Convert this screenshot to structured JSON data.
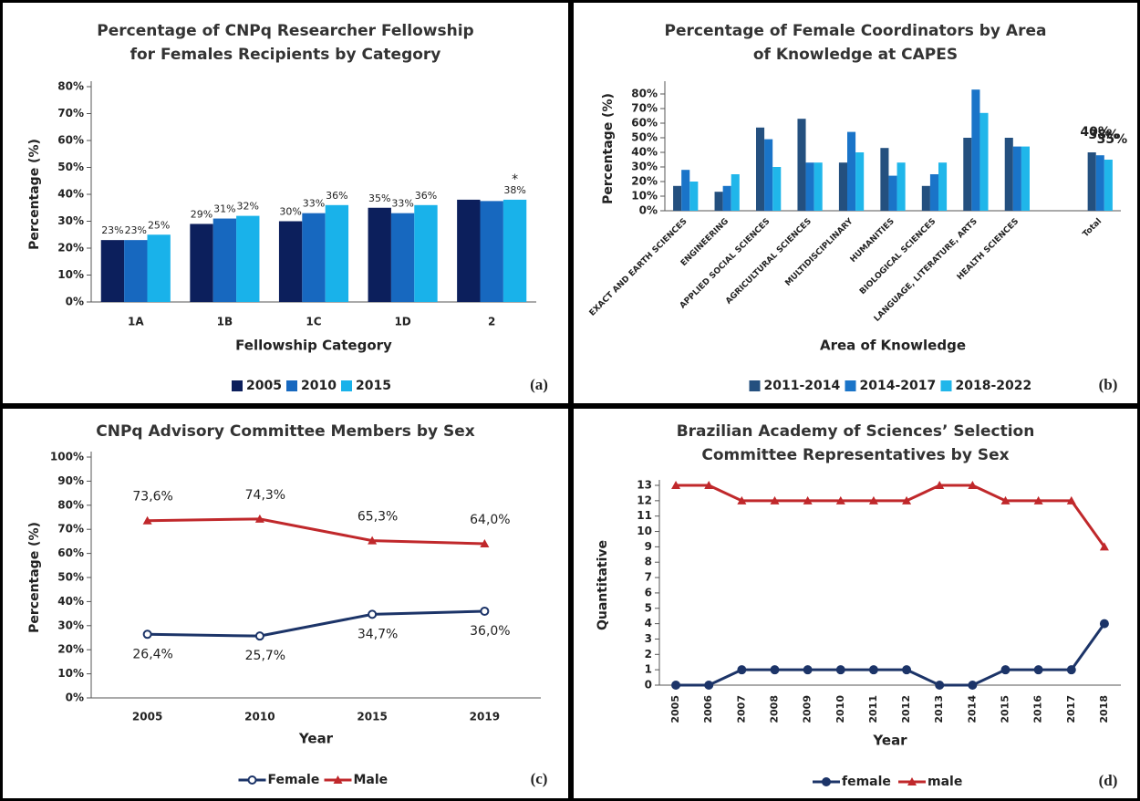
{
  "chart_data": [
    {
      "type": "bar",
      "panel_label": "(a)",
      "title": "Percentage of CNPq Researcher Fellowship for Females Recipients by Category",
      "xlabel": "Fellowship Category",
      "ylabel": "Percentage (%)",
      "annotation": "*",
      "legend": "bottom",
      "categories": [
        "1A",
        "1B",
        "1C",
        "1D",
        "2"
      ],
      "series": [
        {
          "name": "2005",
          "color": "#0c1f5c",
          "values": [
            23,
            29,
            30,
            35,
            38
          ],
          "value_labels": [
            "23%",
            "29%",
            "30%",
            "35%",
            null
          ]
        },
        {
          "name": "2010",
          "color": "#1768bf",
          "values": [
            23,
            31,
            33,
            33,
            37.5
          ],
          "value_labels": [
            "23%",
            "31%",
            "33%",
            "33%",
            null
          ]
        },
        {
          "name": "2015",
          "color": "#19b2ea",
          "values": [
            25,
            32,
            36,
            36,
            38
          ],
          "value_labels": [
            "25%",
            "32%",
            "36%",
            "36%",
            "38%"
          ]
        }
      ],
      "ylim": [
        0,
        80
      ],
      "yticks": [
        {
          "value": 0,
          "label": "0%"
        },
        {
          "value": 10,
          "label": "10%"
        },
        {
          "value": 20,
          "label": "20%"
        },
        {
          "value": 30,
          "label": "30%"
        },
        {
          "value": 40,
          "label": "40%"
        },
        {
          "value": 50,
          "label": "50%"
        },
        {
          "value": 60,
          "label": "60%"
        },
        {
          "value": 70,
          "label": "70%"
        },
        {
          "value": 80,
          "label": "80%"
        }
      ]
    },
    {
      "type": "bar",
      "panel_label": "(b)",
      "title": "Percentage of Female Coordinators by Area of Knowledge at CAPES",
      "xlabel": "Area of Knowledge",
      "ylabel": "Percentage (%)",
      "legend": "bottom",
      "categories": [
        "EXACT AND EARTH SCIENCES",
        "ENGINEERING",
        "APPLIED SOCIAL SCIENCES",
        "AGRICULTURAL SCIENCES",
        "MULTIDISCIPLINARY",
        "HUMANITIES",
        "BIOLOGICAL SCIENCES",
        "LANGUAGE, LITERATURE, ARTS",
        "HEALTH SCIENCES",
        null,
        "Total"
      ],
      "series": [
        {
          "name": "2011-2014",
          "color": "#24507f",
          "values": [
            17,
            13,
            57,
            63,
            33,
            43,
            17,
            50,
            50,
            null,
            40
          ],
          "value_labels": [
            null,
            null,
            null,
            null,
            null,
            null,
            null,
            null,
            null,
            null,
            "40%"
          ]
        },
        {
          "name": "2014-2017",
          "color": "#1a74c8",
          "values": [
            28,
            17,
            49,
            33,
            54,
            24,
            25,
            83,
            44,
            null,
            38
          ],
          "value_labels": [
            null,
            null,
            null,
            null,
            null,
            null,
            null,
            null,
            null,
            null,
            "38%"
          ]
        },
        {
          "name": "2018-2022",
          "color": "#20b6ea",
          "values": [
            20,
            25,
            30,
            33,
            40,
            33,
            33,
            67,
            44,
            null,
            35
          ],
          "value_labels": [
            null,
            null,
            null,
            null,
            null,
            null,
            null,
            null,
            null,
            null,
            "35%"
          ]
        }
      ],
      "ylim": [
        0,
        85
      ],
      "yticks": [
        {
          "value": 0,
          "label": "0%"
        },
        {
          "value": 10,
          "label": "10%"
        },
        {
          "value": 20,
          "label": "20%"
        },
        {
          "value": 30,
          "label": "30%"
        },
        {
          "value": 40,
          "label": "40%"
        },
        {
          "value": 50,
          "label": "50%"
        },
        {
          "value": 60,
          "label": "60%"
        },
        {
          "value": 70,
          "label": "70%"
        },
        {
          "value": 80,
          "label": "80%"
        }
      ]
    },
    {
      "type": "line",
      "panel_label": "(c)",
      "title": "CNPq Advisory Committee Members by Sex",
      "xlabel": "Year",
      "ylabel": "Percentage (%)",
      "legend": "bottom",
      "categories": [
        "2005",
        "2010",
        "2015",
        "2019"
      ],
      "series": [
        {
          "name": "Female",
          "color": "#1c3468",
          "marker": "circle",
          "values": [
            26.4,
            25.7,
            34.7,
            36.0
          ],
          "value_labels": [
            "26,4%",
            "25,7%",
            "34,7%",
            "36,0%"
          ]
        },
        {
          "name": "Male",
          "color": "#c0282b",
          "marker": "triangle",
          "values": [
            73.6,
            74.3,
            65.3,
            64.0
          ],
          "value_labels": [
            "73,6%",
            "74,3%",
            "65,3%",
            "64,0%"
          ]
        }
      ],
      "ylim": [
        0,
        100
      ],
      "yticks": [
        {
          "value": 0,
          "label": "0%"
        },
        {
          "value": 10,
          "label": "10%"
        },
        {
          "value": 20,
          "label": "20%"
        },
        {
          "value": 30,
          "label": "30%"
        },
        {
          "value": 40,
          "label": "40%"
        },
        {
          "value": 50,
          "label": "50%"
        },
        {
          "value": 60,
          "label": "60%"
        },
        {
          "value": 70,
          "label": "70%"
        },
        {
          "value": 80,
          "label": "80%"
        },
        {
          "value": 90,
          "label": "90%"
        },
        {
          "value": 100,
          "label": "100%"
        }
      ]
    },
    {
      "type": "line",
      "panel_label": "(d)",
      "title": "Brazilian Academy of Sciences’ Selection Committee Representatives by Sex",
      "xlabel": "Year",
      "ylabel": "Quantitative",
      "legend": "bottom",
      "categories": [
        "2005",
        "2006",
        "2007",
        "2008",
        "2009",
        "2010",
        "2011",
        "2012",
        "2013",
        "2014",
        "2015",
        "2016",
        "2017",
        "2018"
      ],
      "series": [
        {
          "name": "female",
          "color": "#1c3468",
          "marker": "circle",
          "values": [
            0,
            0,
            1,
            1,
            1,
            1,
            1,
            1,
            0,
            0,
            1,
            1,
            1,
            4
          ]
        },
        {
          "name": "male",
          "color": "#c0282b",
          "marker": "triangle",
          "values": [
            13,
            13,
            12,
            12,
            12,
            12,
            12,
            12,
            13,
            13,
            12,
            12,
            12,
            9
          ]
        }
      ],
      "ylim": [
        0,
        13
      ],
      "yticks": [
        0,
        1,
        2,
        3,
        4,
        5,
        6,
        7,
        8,
        9,
        10,
        11,
        12,
        13
      ]
    }
  ]
}
